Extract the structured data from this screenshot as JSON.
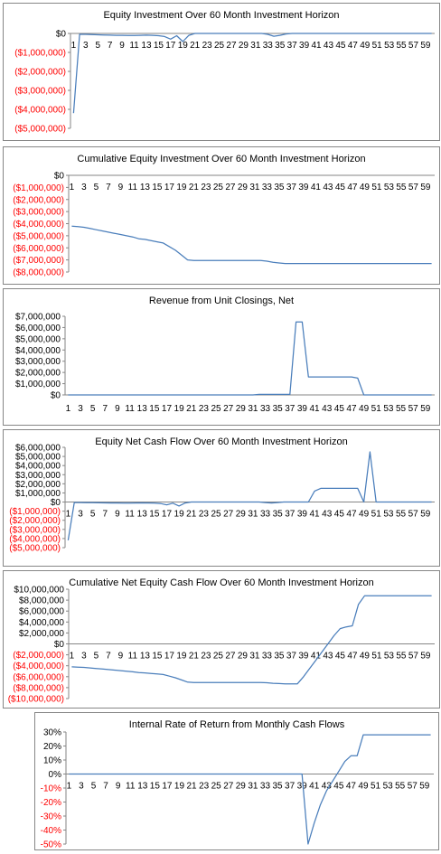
{
  "colors": {
    "line": "#4a7ebb",
    "negative_tick": "#ff0000",
    "tick": "#000000",
    "border": "#868686"
  },
  "chart_data": [
    {
      "type": "line",
      "title": "Equity Investment Over 60 Month Investment Horizon",
      "xlabel": "",
      "ylabel": "",
      "ylim": [
        -5000000,
        0
      ],
      "yticks": [
        0,
        -1000000,
        -2000000,
        -3000000,
        -4000000,
        -5000000
      ],
      "ytick_labels": [
        "$0",
        "($1,000,000)",
        "($2,000,000)",
        "($3,000,000)",
        "($4,000,000)",
        "($5,000,000)"
      ],
      "xtick_labels": [
        "1",
        "3",
        "5",
        "7",
        "9",
        "11",
        "13",
        "15",
        "17",
        "19",
        "21",
        "23",
        "25",
        "27",
        "29",
        "31",
        "33",
        "35",
        "37",
        "39",
        "41",
        "43",
        "45",
        "47",
        "49",
        "51",
        "53",
        "55",
        "57",
        "59"
      ],
      "grid": false,
      "legend": "none",
      "series": [
        {
          "values": [
            -4200000,
            -50000,
            -50000,
            -60000,
            -70000,
            -80000,
            -90000,
            -100000,
            -100000,
            -110000,
            -110000,
            -100000,
            -90000,
            -100000,
            -120000,
            -160000,
            -300000,
            -120000,
            -430000,
            -100000,
            0,
            0,
            0,
            0,
            0,
            0,
            0,
            0,
            0,
            0,
            0,
            0,
            -50000,
            -150000,
            -100000,
            -30000,
            0,
            0,
            0,
            0,
            0,
            0,
            0,
            0,
            0,
            0,
            0,
            0,
            0,
            0,
            0,
            0,
            0,
            0,
            0,
            0,
            0,
            0,
            0,
            0
          ]
        }
      ]
    },
    {
      "type": "line",
      "title": "Cumulative Equity Investment Over 60 Month Investment Horizon",
      "xlabel": "",
      "ylabel": "",
      "ylim": [
        -8000000,
        0
      ],
      "yticks": [
        0,
        -1000000,
        -2000000,
        -3000000,
        -4000000,
        -5000000,
        -6000000,
        -7000000,
        -8000000
      ],
      "ytick_labels": [
        "$0",
        "($1,000,000)",
        "($2,000,000)",
        "($3,000,000)",
        "($4,000,000)",
        "($5,000,000)",
        "($6,000,000)",
        "($7,000,000)",
        "($8,000,000)"
      ],
      "xtick_labels": [
        "1",
        "3",
        "5",
        "7",
        "9",
        "11",
        "13",
        "15",
        "17",
        "19",
        "21",
        "23",
        "25",
        "27",
        "29",
        "31",
        "33",
        "35",
        "37",
        "39",
        "41",
        "43",
        "45",
        "47",
        "49",
        "51",
        "53",
        "55",
        "57",
        "59"
      ],
      "grid": false,
      "legend": "none",
      "series": [
        {
          "values": [
            -4200000,
            -4250000,
            -4300000,
            -4400000,
            -4500000,
            -4600000,
            -4700000,
            -4800000,
            -4900000,
            -5000000,
            -5100000,
            -5250000,
            -5300000,
            -5400000,
            -5500000,
            -5600000,
            -5900000,
            -6200000,
            -6600000,
            -7000000,
            -7050000,
            -7050000,
            -7050000,
            -7050000,
            -7050000,
            -7050000,
            -7050000,
            -7050000,
            -7050000,
            -7050000,
            -7050000,
            -7050000,
            -7100000,
            -7200000,
            -7250000,
            -7300000,
            -7300000,
            -7300000,
            -7300000,
            -7300000,
            -7300000,
            -7300000,
            -7300000,
            -7300000,
            -7300000,
            -7300000,
            -7300000,
            -7300000,
            -7300000,
            -7300000,
            -7300000,
            -7300000,
            -7300000,
            -7300000,
            -7300000,
            -7300000,
            -7300000,
            -7300000,
            -7300000,
            -7300000
          ]
        }
      ]
    },
    {
      "type": "line",
      "title": "Revenue from Unit Closings, Net",
      "xlabel": "",
      "ylabel": "",
      "ylim": [
        0,
        7000000
      ],
      "yticks": [
        7000000,
        6000000,
        5000000,
        4000000,
        3000000,
        2000000,
        1000000,
        0
      ],
      "ytick_labels": [
        "$7,000,000",
        "$6,000,000",
        "$5,000,000",
        "$4,000,000",
        "$3,000,000",
        "$2,000,000",
        "$1,000,000",
        "$0"
      ],
      "xtick_labels": [
        "1",
        "3",
        "5",
        "7",
        "9",
        "11",
        "13",
        "15",
        "17",
        "19",
        "21",
        "23",
        "25",
        "27",
        "29",
        "31",
        "33",
        "35",
        "37",
        "39",
        "41",
        "43",
        "45",
        "47",
        "49",
        "51",
        "53",
        "55",
        "57",
        "59"
      ],
      "grid": false,
      "legend": "none",
      "series": [
        {
          "values": [
            0,
            0,
            0,
            0,
            0,
            0,
            0,
            0,
            0,
            0,
            0,
            0,
            0,
            0,
            0,
            0,
            0,
            0,
            0,
            0,
            0,
            0,
            0,
            0,
            0,
            0,
            0,
            0,
            0,
            0,
            0,
            50000,
            50000,
            50000,
            50000,
            50000,
            50000,
            6500000,
            6500000,
            1600000,
            1600000,
            1600000,
            1600000,
            1600000,
            1600000,
            1600000,
            1600000,
            1500000,
            0,
            0,
            0,
            0,
            0,
            0,
            0,
            0,
            0,
            0,
            0,
            0
          ]
        }
      ]
    },
    {
      "type": "line",
      "title": "Equity Net Cash Flow Over 60 Month Investment Horizon",
      "xlabel": "",
      "ylabel": "",
      "ylim": [
        -5000000,
        6000000
      ],
      "yticks": [
        6000000,
        5000000,
        4000000,
        3000000,
        2000000,
        1000000,
        0,
        -1000000,
        -2000000,
        -3000000,
        -4000000,
        -5000000
      ],
      "ytick_labels": [
        "$6,000,000",
        "$5,000,000",
        "$4,000,000",
        "$3,000,000",
        "$2,000,000",
        "$1,000,000",
        "$0",
        "($1,000,000)",
        "($2,000,000)",
        "($3,000,000)",
        "($4,000,000)",
        "($5,000,000)"
      ],
      "xtick_labels": [
        "1",
        "3",
        "5",
        "7",
        "9",
        "11",
        "13",
        "15",
        "17",
        "19",
        "21",
        "23",
        "25",
        "27",
        "29",
        "31",
        "33",
        "35",
        "37",
        "39",
        "41",
        "43",
        "45",
        "47",
        "49",
        "51",
        "53",
        "55",
        "57",
        "59"
      ],
      "grid": false,
      "legend": "none",
      "series": [
        {
          "values": [
            -4200000,
            -50000,
            -50000,
            -60000,
            -70000,
            -80000,
            -90000,
            -100000,
            -100000,
            -110000,
            -110000,
            -100000,
            -90000,
            -100000,
            -120000,
            -160000,
            -300000,
            -120000,
            -430000,
            -100000,
            0,
            0,
            0,
            0,
            0,
            0,
            0,
            0,
            0,
            0,
            0,
            0,
            -50000,
            -100000,
            -50000,
            0,
            0,
            0,
            0,
            0,
            1200000,
            1500000,
            1500000,
            1500000,
            1500000,
            1500000,
            1500000,
            1500000,
            0,
            5500000,
            0,
            0,
            0,
            0,
            0,
            0,
            0,
            0,
            0,
            0
          ]
        }
      ]
    },
    {
      "type": "line",
      "title": "Cumulative Net Equity Cash Flow Over 60 Month Investment Horizon",
      "xlabel": "",
      "ylabel": "",
      "ylim": [
        -10000000,
        10000000
      ],
      "yticks": [
        10000000,
        8000000,
        6000000,
        4000000,
        2000000,
        0,
        -2000000,
        -4000000,
        -6000000,
        -8000000,
        -10000000
      ],
      "ytick_labels": [
        "$10,000,000",
        "$8,000,000",
        "$6,000,000",
        "$4,000,000",
        "$2,000,000",
        "$0",
        "($2,000,000)",
        "($4,000,000)",
        "($6,000,000)",
        "($8,000,000)",
        "($10,000,000)"
      ],
      "xtick_labels": [
        "1",
        "3",
        "5",
        "7",
        "9",
        "11",
        "13",
        "15",
        "17",
        "19",
        "21",
        "23",
        "25",
        "27",
        "29",
        "31",
        "33",
        "35",
        "37",
        "39",
        "41",
        "43",
        "45",
        "47",
        "49",
        "51",
        "53",
        "55",
        "57",
        "59"
      ],
      "grid": false,
      "legend": "none",
      "series": [
        {
          "values": [
            -4200000,
            -4250000,
            -4300000,
            -4400000,
            -4500000,
            -4600000,
            -4700000,
            -4800000,
            -4900000,
            -5000000,
            -5100000,
            -5250000,
            -5300000,
            -5400000,
            -5500000,
            -5600000,
            -5900000,
            -6200000,
            -6600000,
            -7000000,
            -7050000,
            -7050000,
            -7050000,
            -7050000,
            -7050000,
            -7050000,
            -7050000,
            -7050000,
            -7050000,
            -7050000,
            -7050000,
            -7050000,
            -7100000,
            -7200000,
            -7250000,
            -7300000,
            -7300000,
            -7300000,
            -6000000,
            -4500000,
            -3000000,
            -1500000,
            0,
            1500000,
            2800000,
            3100000,
            3300000,
            7200000,
            8800000,
            8800000,
            8800000,
            8800000,
            8800000,
            8800000,
            8800000,
            8800000,
            8800000,
            8800000,
            8800000,
            8800000
          ]
        }
      ]
    },
    {
      "type": "line",
      "title": "Internal Rate of Return from Monthly Cash Flows",
      "xlabel": "",
      "ylabel": "",
      "ylim": [
        -50,
        30
      ],
      "yticks": [
        30,
        20,
        10,
        0,
        -10,
        -20,
        -30,
        -40,
        -50
      ],
      "ytick_labels": [
        "30%",
        "20%",
        "10%",
        "0%",
        "-10%",
        "-20%",
        "-30%",
        "-40%",
        "-50%"
      ],
      "xtick_labels": [
        "1",
        "3",
        "5",
        "7",
        "9",
        "11",
        "13",
        "15",
        "17",
        "19",
        "21",
        "23",
        "25",
        "27",
        "29",
        "31",
        "33",
        "35",
        "37",
        "39",
        "41",
        "43",
        "45",
        "47",
        "49",
        "51",
        "53",
        "55",
        "57",
        "59"
      ],
      "grid": false,
      "legend": "none",
      "series": [
        {
          "values": [
            0,
            0,
            0,
            0,
            0,
            0,
            0,
            0,
            0,
            0,
            0,
            0,
            0,
            0,
            0,
            0,
            0,
            0,
            0,
            0,
            0,
            0,
            0,
            0,
            0,
            0,
            0,
            0,
            0,
            0,
            0,
            0,
            0,
            0,
            0,
            0,
            0,
            0,
            0,
            -50,
            -35,
            -22,
            -12,
            -5,
            2,
            9,
            13,
            13,
            28,
            28,
            28,
            28,
            28,
            28,
            28,
            28,
            28,
            28,
            28,
            28
          ]
        }
      ]
    }
  ]
}
